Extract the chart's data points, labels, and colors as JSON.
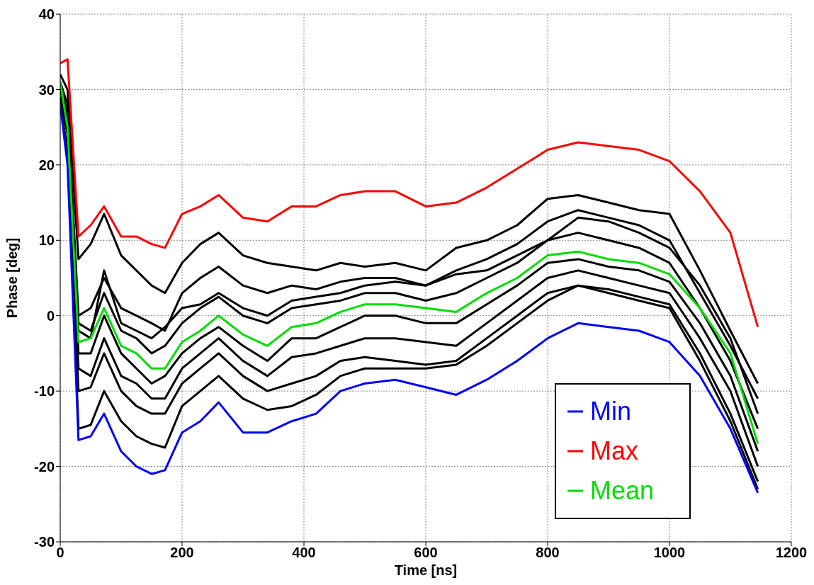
{
  "chart_data": {
    "type": "line",
    "xlabel": "Time [ns]",
    "ylabel": "Phase [deg]",
    "x": [
      0,
      12,
      30,
      50,
      72,
      100,
      125,
      150,
      172,
      200,
      230,
      260,
      300,
      340,
      380,
      420,
      460,
      500,
      550,
      600,
      650,
      700,
      750,
      800,
      850,
      900,
      950,
      1000,
      1050,
      1100,
      1145
    ],
    "xlim": [
      0,
      1200
    ],
    "xticks": [
      0,
      200,
      400,
      600,
      800,
      1000,
      1200
    ],
    "ylim": [
      -30,
      40
    ],
    "yticks": [
      -30,
      -20,
      -10,
      0,
      10,
      20,
      30,
      40
    ],
    "grid": true,
    "legend": "bottom right",
    "marker": "none",
    "line_style": "solid",
    "series": [
      {
        "color": "#000000",
        "values": [
          32,
          30,
          7.5,
          9.5,
          13.5,
          8,
          6,
          4,
          3,
          7,
          9.5,
          11,
          8,
          7,
          6.5,
          6,
          7,
          6.5,
          7,
          6,
          9,
          10,
          12,
          15.5,
          16,
          15,
          14,
          13.5,
          6,
          -2,
          -9
        ]
      },
      {
        "color": "#000000",
        "values": [
          31,
          28,
          0,
          1,
          5,
          1,
          0,
          -1,
          -2,
          3,
          5,
          6.5,
          4,
          3,
          4,
          3.5,
          4.5,
          5,
          5,
          4,
          6,
          7.5,
          9.5,
          12.5,
          14,
          13,
          12,
          10,
          3,
          -4,
          -11
        ]
      },
      {
        "color": "#000000",
        "values": [
          31,
          27,
          -2,
          -3,
          6,
          -1,
          -2,
          -3,
          -1.5,
          1,
          1.5,
          3,
          1,
          0,
          2,
          2.5,
          3,
          4,
          4.5,
          4,
          5.5,
          6,
          8,
          10,
          13,
          12.5,
          11,
          9,
          4,
          -3,
          -13
        ]
      },
      {
        "color": "#000000",
        "values": [
          30,
          27,
          -1,
          -2,
          3,
          -2,
          -3,
          -5,
          -4,
          -1,
          1,
          2.5,
          0,
          -1,
          1,
          1.5,
          2,
          3,
          3,
          2,
          3,
          5,
          7,
          10,
          11,
          10,
          9,
          7,
          1,
          -6,
          -15
        ]
      },
      {
        "color": "#000000",
        "values": [
          30,
          26,
          -5,
          -5,
          0,
          -5,
          -7,
          -9,
          -8,
          -5,
          -3,
          -1.5,
          -4,
          -6,
          -3,
          -3,
          -1.5,
          0,
          0,
          -1,
          -1,
          1.5,
          4,
          7,
          7.5,
          6.5,
          6,
          4.5,
          -1,
          -8,
          -18
        ]
      },
      {
        "color": "#000000",
        "values": [
          29,
          25,
          -7,
          -8,
          -3,
          -8,
          -9,
          -11,
          -11,
          -7,
          -5,
          -3,
          -6,
          -8,
          -5.5,
          -5,
          -4,
          -3,
          -3,
          -3.5,
          -4,
          -1,
          2,
          5,
          6,
          5,
          4,
          3,
          -3,
          -10,
          -20
        ]
      },
      {
        "color": "#000000",
        "values": [
          29,
          24,
          -10,
          -9.5,
          -5,
          -10,
          -12,
          -13,
          -13,
          -9,
          -7,
          -5,
          -8,
          -10,
          -9,
          -8,
          -6,
          -5.5,
          -6,
          -6.5,
          -6,
          -3,
          0,
          3,
          4,
          3.5,
          2.5,
          1.5,
          -5,
          -13,
          -22
        ]
      },
      {
        "color": "#000000",
        "values": [
          28,
          22,
          -15,
          -14.5,
          -10,
          -14,
          -16,
          -17,
          -17.5,
          -12,
          -10,
          -8,
          -11,
          -12.5,
          -12,
          -10.5,
          -8,
          -7,
          -7,
          -7,
          -6.5,
          -4,
          -1,
          2,
          4,
          3,
          2,
          1,
          -6,
          -14,
          -23
        ]
      },
      {
        "name": "Min",
        "color": "#0000ff",
        "values": [
          28,
          20,
          -16.5,
          -16,
          -13,
          -18,
          -20,
          -21,
          -20.5,
          -15.5,
          -14,
          -11.5,
          -15.5,
          -15.5,
          -14,
          -13,
          -10,
          -9,
          -8.5,
          -9.5,
          -10.5,
          -8.5,
          -6,
          -3,
          -1,
          -1.5,
          -2,
          -3.5,
          -8,
          -15,
          -23.5
        ]
      },
      {
        "name": "Max",
        "color": "#ff0000",
        "values": [
          33.5,
          34,
          10.5,
          12,
          14.5,
          10.5,
          10.5,
          9.5,
          9,
          13.5,
          14.5,
          16,
          13,
          12.5,
          14.5,
          14.5,
          16,
          16.5,
          16.5,
          14.5,
          15,
          17,
          19.5,
          22,
          23,
          22.5,
          22,
          20.5,
          16.5,
          11,
          -1.5
        ]
      },
      {
        "name": "Mean",
        "color": "#00dd00",
        "values": [
          31,
          25,
          -3.5,
          -3,
          1,
          -4,
          -5,
          -7,
          -7,
          -3.5,
          -2,
          0,
          -2.5,
          -4,
          -1.5,
          -1,
          0.5,
          1.5,
          1.5,
          1,
          0.5,
          3,
          5,
          8,
          8.5,
          7.5,
          7,
          5.5,
          1,
          -5,
          -17
        ]
      }
    ]
  }
}
